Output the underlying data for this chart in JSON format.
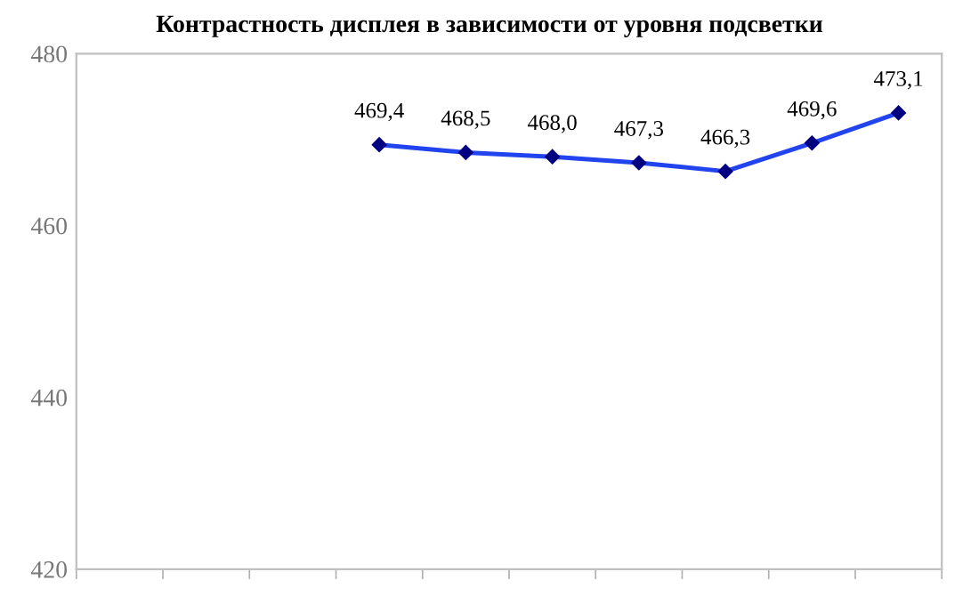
{
  "chart_data": {
    "type": "line",
    "title": "Контрастность дисплея в зависимости от уровня подсветки",
    "categories": [
      null,
      null,
      null,
      null,
      null,
      null,
      null,
      null,
      null,
      null
    ],
    "series": [
      {
        "color": "#2244ee",
        "values": [
          null,
          null,
          null,
          469.4,
          468.5,
          468.0,
          467.3,
          466.3,
          469.6,
          473.1
        ],
        "value_labels": [
          null,
          null,
          null,
          "469,4",
          "468,5",
          "468,0",
          "467,3",
          "466,3",
          "469,6",
          "473,1"
        ]
      }
    ],
    "ylim": [
      420,
      480
    ],
    "yticks": [
      420,
      440,
      460,
      480
    ],
    "marker": "diamond",
    "grid": false,
    "legend": false
  }
}
